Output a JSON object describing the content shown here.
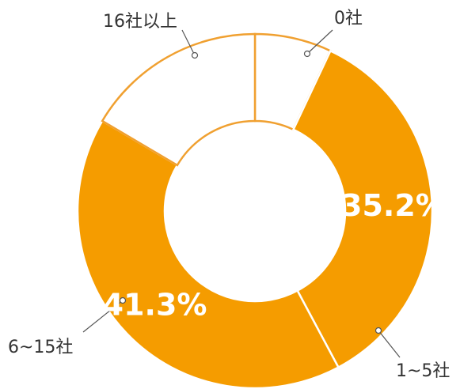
{
  "chart_data": {
    "type": "donut",
    "categories": [
      "0社",
      "1~5社",
      "6~15社",
      "16社以上"
    ],
    "values": [
      7,
      35.2,
      41.3,
      16.5
    ],
    "value_labels": [
      null,
      "35.2%",
      "41.3%",
      null
    ],
    "colors": [
      "#ffffff",
      "#f59c00",
      "#f59c00",
      "#ffffff"
    ]
  }
}
